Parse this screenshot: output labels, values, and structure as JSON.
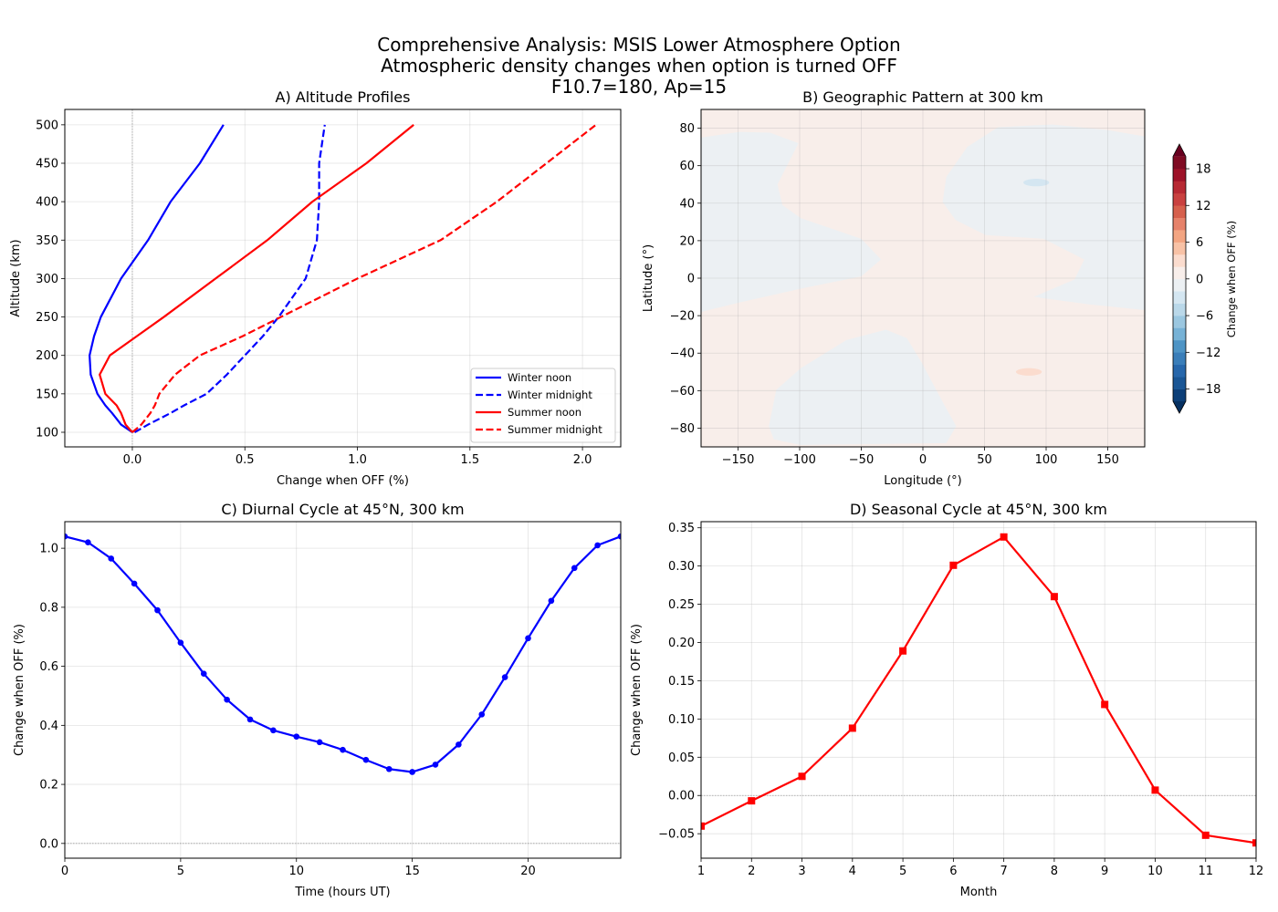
{
  "figure": {
    "title_lines": [
      "Comprehensive Analysis: MSIS Lower Atmosphere Option",
      "Atmospheric density changes when option is turned OFF",
      "F10.7=180, Ap=15"
    ]
  },
  "chart_data": [
    {
      "type": "line",
      "title": "A) Altitude Profiles",
      "xlabel": "Change when OFF (%)",
      "ylabel": "Altitude (km)",
      "xlim": [
        -0.3,
        2.17
      ],
      "ylim": [
        81,
        520
      ],
      "xticks": [
        0,
        0.5,
        1.0,
        1.5,
        2.0
      ],
      "xticklabels": [
        "0.0",
        "0.5",
        "1.0",
        "1.5",
        "2.0"
      ],
      "yticks": [
        100,
        150,
        200,
        250,
        300,
        350,
        400,
        450,
        500
      ],
      "yticklabels": [
        "100",
        "150",
        "200",
        "250",
        "300",
        "350",
        "400",
        "450",
        "500"
      ],
      "grid": true,
      "reference_line": {
        "axis": "x",
        "value": 0
      },
      "legend_position": "lower-right",
      "altitude_km": [
        100,
        110,
        125,
        135,
        150,
        175,
        200,
        225,
        250,
        300,
        350,
        400,
        450,
        500
      ],
      "series": [
        {
          "name": "Winter noon",
          "color": "#0000ff",
          "linestyle": "solid",
          "values": [
            0,
            -0.05,
            -0.09,
            -0.12,
            -0.155,
            -0.185,
            -0.19,
            -0.17,
            -0.14,
            -0.05,
            0.07,
            0.17,
            0.3,
            0.405
          ]
        },
        {
          "name": "Winter midnight",
          "color": "#0000ff",
          "linestyle": "dashed",
          "values": [
            0.01,
            0.07,
            0.17,
            0.23,
            0.33,
            0.42,
            0.5,
            0.58,
            0.65,
            0.77,
            0.82,
            0.83,
            0.83,
            0.855
          ]
        },
        {
          "name": "Summer noon",
          "color": "#ff0000",
          "linestyle": "solid",
          "values": [
            0,
            -0.03,
            -0.05,
            -0.07,
            -0.12,
            -0.145,
            -0.1,
            0.02,
            0.14,
            0.37,
            0.6,
            0.8,
            1.04,
            1.25
          ]
        },
        {
          "name": "Summer midnight",
          "color": "#ff0000",
          "linestyle": "dashed",
          "values": [
            0,
            0.04,
            0.08,
            0.1,
            0.12,
            0.19,
            0.3,
            0.49,
            0.66,
            1.0,
            1.37,
            1.62,
            1.84,
            2.06
          ]
        }
      ]
    },
    {
      "type": "heatmap",
      "subtype": "filled-contour",
      "title": "B) Geographic Pattern at 300 km",
      "xlabel": "Longitude (°)",
      "ylabel": "Latitude (°)",
      "xlim": [
        -180,
        180
      ],
      "ylim": [
        -90,
        90
      ],
      "xticks": [
        -150,
        -100,
        -50,
        0,
        50,
        100,
        150
      ],
      "xticklabels": [
        "−150",
        "−100",
        "−50",
        "0",
        "50",
        "100",
        "150"
      ],
      "yticks": [
        -80,
        -60,
        -40,
        -20,
        0,
        20,
        40,
        60,
        80
      ],
      "yticklabels": [
        "−80",
        "−60",
        "−40",
        "−20",
        "0",
        "20",
        "40",
        "60",
        "80"
      ],
      "grid": true,
      "background_level": [
        0,
        2
      ],
      "regions": [
        {
          "level": [
            -2,
            0
          ],
          "lonlat": [
            [
              -180,
              75
            ],
            [
              -149,
              78
            ],
            [
              -124,
              77.6
            ],
            [
              -101,
              72
            ],
            [
              -118,
              50
            ],
            [
              -114,
              39
            ],
            [
              -99,
              32
            ],
            [
              -50,
              21
            ],
            [
              -34,
              10
            ],
            [
              -50,
              1
            ],
            [
              -99,
              -5.6
            ],
            [
              -149,
              -13
            ],
            [
              -180,
              -18
            ]
          ]
        },
        {
          "level": [
            -2,
            0
          ],
          "lonlat": [
            [
              180,
              75.6
            ],
            [
              150,
              79
            ],
            [
              105,
              82
            ],
            [
              61,
              80.5
            ],
            [
              36,
              70
            ],
            [
              19,
              54
            ],
            [
              16,
              40.6
            ],
            [
              26.5,
              31
            ],
            [
              51,
              23
            ],
            [
              98,
              21
            ],
            [
              131,
              10
            ],
            [
              123,
              -0.7
            ],
            [
              90,
              -10
            ],
            [
              135,
              -14
            ],
            [
              180,
              -17
            ]
          ]
        },
        {
          "level": [
            -2,
            0
          ],
          "lonlat": [
            [
              -125,
              -79
            ],
            [
              -119,
              -59.6
            ],
            [
              -99,
              -48
            ],
            [
              -62,
              -33
            ],
            [
              -30,
              -27.5
            ],
            [
              -13,
              -32
            ],
            [
              -1,
              -45
            ],
            [
              16,
              -66
            ],
            [
              27,
              -79
            ],
            [
              19,
              -88
            ],
            [
              -99,
              -89
            ],
            [
              -121,
              -86
            ]
          ]
        },
        {
          "level": [
            -4,
            -2
          ],
          "ellipse": {
            "lon": 92,
            "lat": 51,
            "dlon": 21,
            "dlat": 4
          }
        },
        {
          "level": [
            2,
            4
          ],
          "ellipse": {
            "lon": 86,
            "lat": -50,
            "dlon": 21,
            "dlat": 4
          }
        }
      ],
      "colorbar": {
        "label": "Change when OFF (%)",
        "colormap": "RdBu_r",
        "levels_range": [
          -20,
          20
        ],
        "level_step": 2,
        "extend": "both",
        "ticks": [
          -18,
          -12,
          -6,
          0,
          6,
          12,
          18
        ],
        "ticklabels": [
          "−18",
          "−12",
          "−6",
          "0",
          "6",
          "12",
          "18"
        ],
        "colors": [
          "#0c3f78",
          "#1a5695",
          "#2767ab",
          "#3a7eb9",
          "#4e94c5",
          "#77b2d6",
          "#9bc7e0",
          "#bad8e9",
          "#d4e6f1",
          "#ecf0f3",
          "#f8eeea",
          "#fbdcce",
          "#f8c2a6",
          "#f3a582",
          "#e6826a",
          "#d6604d",
          "#c94140",
          "#b72933",
          "#9d1228",
          "#7f0b23"
        ],
        "extend_colors": [
          "#053061",
          "#67001f"
        ]
      }
    },
    {
      "type": "line",
      "title": "C) Diurnal Cycle at 45°N, 300 km",
      "xlabel": "Time (hours UT)",
      "ylabel": "Change when OFF (%)",
      "xlim": [
        0,
        24
      ],
      "ylim": [
        -0.05,
        1.09
      ],
      "xticks": [
        0,
        5,
        10,
        15,
        20
      ],
      "xticklabels": [
        "0",
        "5",
        "10",
        "15",
        "20"
      ],
      "yticks": [
        0,
        0.2,
        0.4,
        0.6,
        0.8,
        1.0
      ],
      "yticklabels": [
        "0.0",
        "0.2",
        "0.4",
        "0.6",
        "0.8",
        "1.0"
      ],
      "grid": true,
      "reference_line": {
        "axis": "y",
        "value": 0
      },
      "marker": "circle",
      "color": "#0000ff",
      "x": [
        0,
        1,
        2,
        3,
        4,
        5,
        6,
        7,
        8,
        9,
        10,
        11,
        12,
        13,
        14,
        15,
        16,
        17,
        18,
        19,
        20,
        21,
        22,
        23,
        24
      ],
      "values": [
        1.04,
        1.02,
        0.965,
        0.88,
        0.79,
        0.68,
        0.575,
        0.487,
        0.42,
        0.383,
        0.362,
        0.343,
        0.317,
        0.283,
        0.252,
        0.242,
        0.267,
        0.335,
        0.437,
        0.563,
        0.695,
        0.822,
        0.933,
        1.01,
        1.04
      ]
    },
    {
      "type": "line",
      "title": "D) Seasonal Cycle at 45°N, 300 km",
      "xlabel": "Month",
      "ylabel": "Change when OFF (%)",
      "xlim": [
        1,
        12
      ],
      "ylim": [
        -0.082,
        0.358
      ],
      "xticks": [
        1,
        2,
        3,
        4,
        5,
        6,
        7,
        8,
        9,
        10,
        11,
        12
      ],
      "xticklabels": [
        "1",
        "2",
        "3",
        "4",
        "5",
        "6",
        "7",
        "8",
        "9",
        "10",
        "11",
        "12"
      ],
      "yticks": [
        -0.05,
        0,
        0.05,
        0.1,
        0.15,
        0.2,
        0.25,
        0.3,
        0.35
      ],
      "yticklabels": [
        "−0.05",
        "0.00",
        "0.05",
        "0.10",
        "0.15",
        "0.20",
        "0.25",
        "0.30",
        "0.35"
      ],
      "grid": true,
      "reference_line": {
        "axis": "y",
        "value": 0
      },
      "marker": "square",
      "color": "#ff0000",
      "x": [
        1,
        2,
        3,
        4,
        5,
        6,
        7,
        8,
        9,
        10,
        11,
        12
      ],
      "values": [
        -0.04,
        -0.007,
        0.025,
        0.088,
        0.189,
        0.301,
        0.338,
        0.26,
        0.119,
        0.007,
        -0.052,
        -0.062
      ]
    }
  ]
}
